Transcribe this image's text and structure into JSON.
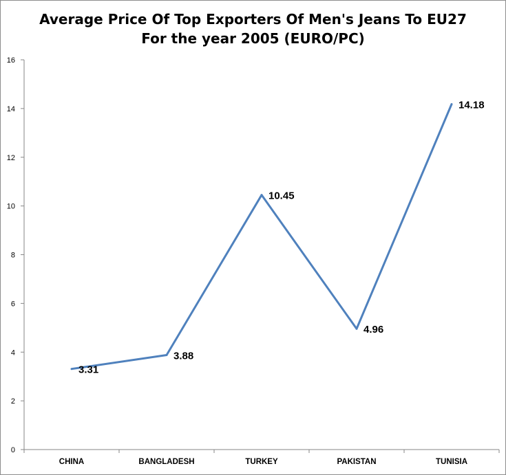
{
  "chart_data": {
    "type": "line",
    "title": "Average Price Of Top Exporters Of Men's Jeans To EU27",
    "subtitle": "For the year 2005 (EURO/PC)",
    "categories": [
      "CHINA",
      "BANGLADESH",
      "TURKEY",
      "PAKISTAN",
      "TUNISIA"
    ],
    "series": [
      {
        "values": [
          3.31,
          3.88,
          10.45,
          4.96,
          14.18
        ]
      }
    ],
    "data_labels": [
      "3.31",
      "3.88",
      "10.45",
      "4.96",
      "14.18"
    ],
    "y_ticks": [
      0,
      2,
      4,
      6,
      8,
      10,
      12,
      14,
      16
    ],
    "y_tick_labels": [
      "0",
      "2",
      "4",
      "6",
      "8",
      "10",
      "12",
      "14",
      "16"
    ],
    "ylim": [
      0,
      16
    ],
    "xlabel": "",
    "ylabel": "",
    "grid": false,
    "legend": "none",
    "line_color": "#4f81bd"
  }
}
